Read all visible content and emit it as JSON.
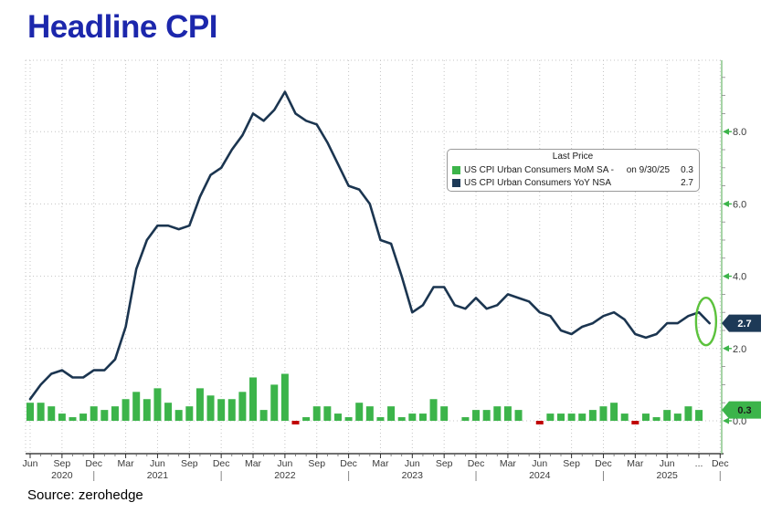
{
  "title": "Headline CPI",
  "source": "Source: zerohedge",
  "legend": {
    "title": "Last Price",
    "rows": [
      {
        "label": "US CPI Urban Consumers MoM SA -",
        "date": "on 9/30/25",
        "value": "0.3",
        "color": "#3cb44a"
      },
      {
        "label": "US CPI Urban Consumers YoY NSA",
        "date": "",
        "value": "2.7",
        "color": "#1d3a57"
      }
    ]
  },
  "chart_data": {
    "type": "bar+line",
    "title": "Headline CPI",
    "x_start": "2020-06",
    "x_freq": "monthly",
    "ylim": [
      -0.5,
      10.0
    ],
    "y_ticks": [
      0.0,
      2.0,
      4.0,
      6.0,
      8.0
    ],
    "grid": "dotted, every quarter vertical, every 2.0 horizontal",
    "legend_position": "upper right inside plot",
    "series": [
      {
        "name": "US CPI Urban Consumers MoM SA",
        "type": "bar",
        "color": "#3cb44a",
        "negative_color": "#c00000",
        "values": [
          0.5,
          0.5,
          0.4,
          0.2,
          0.1,
          0.2,
          0.4,
          0.3,
          0.4,
          0.6,
          0.8,
          0.6,
          0.9,
          0.5,
          0.3,
          0.4,
          0.9,
          0.7,
          0.6,
          0.6,
          0.8,
          1.2,
          0.3,
          1.0,
          1.3,
          -0.1,
          0.1,
          0.4,
          0.4,
          0.2,
          0.1,
          0.5,
          0.4,
          0.1,
          0.4,
          0.1,
          0.2,
          0.2,
          0.6,
          0.4,
          0.0,
          0.1,
          0.3,
          0.3,
          0.4,
          0.4,
          0.3,
          0.0,
          -0.1,
          0.2,
          0.2,
          0.2,
          0.2,
          0.3,
          0.4,
          0.5,
          0.2,
          -0.1,
          0.2,
          0.1,
          0.3,
          0.2,
          0.4,
          0.3
        ],
        "last_value": 0.3
      },
      {
        "name": "US CPI Urban Consumers YoY NSA",
        "type": "line",
        "color": "#1b3550",
        "values": [
          0.6,
          1.0,
          1.3,
          1.4,
          1.2,
          1.2,
          1.4,
          1.4,
          1.7,
          2.6,
          4.2,
          5.0,
          5.4,
          5.4,
          5.3,
          5.4,
          6.2,
          6.8,
          7.0,
          7.5,
          7.9,
          8.5,
          8.3,
          8.6,
          9.1,
          8.5,
          8.3,
          8.2,
          7.7,
          7.1,
          6.5,
          6.4,
          6.0,
          5.0,
          4.9,
          4.0,
          3.0,
          3.2,
          3.7,
          3.7,
          3.2,
          3.1,
          3.4,
          3.1,
          3.2,
          3.5,
          3.4,
          3.3,
          3.0,
          2.9,
          2.5,
          2.4,
          2.6,
          2.7,
          2.9,
          3.0,
          2.8,
          2.4,
          2.3,
          2.4,
          2.7,
          2.7,
          2.9,
          3.0,
          2.7
        ],
        "last_value": 2.7
      }
    ],
    "badges": [
      {
        "value": "2.7",
        "at": 2.7,
        "fill": "#1d3a57",
        "text_color": "#ffffff"
      },
      {
        "value": "0.3",
        "at": 0.3,
        "fill": "#3cb44a",
        "text_color": "#1a1a1a"
      }
    ],
    "annotation": {
      "type": "ellipse",
      "color": "#5cc23d",
      "around": "last two YoY points (3.0 -> 2.7)"
    },
    "x_axis": {
      "month_labels": [
        {
          "text": "Jun",
          "m": 0
        },
        {
          "text": "Sep",
          "m": 3
        },
        {
          "text": "Dec",
          "m": 6
        },
        {
          "text": "Mar",
          "m": 9
        },
        {
          "text": "Jun",
          "m": 12
        },
        {
          "text": "Sep",
          "m": 15
        },
        {
          "text": "Dec",
          "m": 18
        },
        {
          "text": "Mar",
          "m": 21
        },
        {
          "text": "Jun",
          "m": 24
        },
        {
          "text": "Sep",
          "m": 27
        },
        {
          "text": "Dec",
          "m": 30
        },
        {
          "text": "Mar",
          "m": 33
        },
        {
          "text": "Jun",
          "m": 36
        },
        {
          "text": "Sep",
          "m": 39
        },
        {
          "text": "Dec",
          "m": 42
        },
        {
          "text": "Mar",
          "m": 45
        },
        {
          "text": "Jun",
          "m": 48
        },
        {
          "text": "Sep",
          "m": 51
        },
        {
          "text": "Dec",
          "m": 54
        },
        {
          "text": "Mar",
          "m": 57
        },
        {
          "text": "Jun",
          "m": 60
        },
        {
          "text": "...",
          "m": 63
        },
        {
          "text": "Dec",
          "m": 65
        }
      ],
      "year_labels": [
        {
          "text": "2020",
          "m": 3
        },
        {
          "text": "2021",
          "m": 12
        },
        {
          "text": "2022",
          "m": 24
        },
        {
          "text": "2023",
          "m": 36
        },
        {
          "text": "2024",
          "m": 48
        },
        {
          "text": "2025",
          "m": 60
        }
      ],
      "year_separators_m": [
        6,
        18,
        30,
        42,
        54,
        65
      ]
    },
    "colors": {
      "grid": "#c4c4c4",
      "axis_line": "#1a1a1a",
      "axis_text": "#3a3a3a",
      "right_spine": "#8fca8f",
      "tick_arrow": "#3cb44a"
    }
  }
}
